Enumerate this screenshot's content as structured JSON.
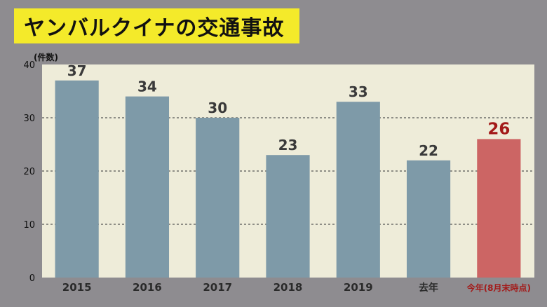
{
  "title": "ヤンバルクイナの交通事故",
  "chart_data": {
    "type": "bar",
    "ylabel": "(件数)",
    "ylim": [
      0,
      40
    ],
    "yticks": [
      0,
      10,
      20,
      30,
      40
    ],
    "grid": true,
    "categories": [
      "2015",
      "2016",
      "2017",
      "2018",
      "2019",
      "去年",
      "今年(8月末時点)"
    ],
    "values": [
      37,
      34,
      30,
      23,
      33,
      22,
      26
    ],
    "highlight_index": 6,
    "colors": {
      "bar": "#7e9aa8",
      "highlight_bar": "#cc6564",
      "label": "#3a3a3a",
      "highlight_label": "#a31a19",
      "plot_bg": "#eeecd9",
      "grid": "#555555",
      "title_bg": "#f4ea2a"
    }
  }
}
